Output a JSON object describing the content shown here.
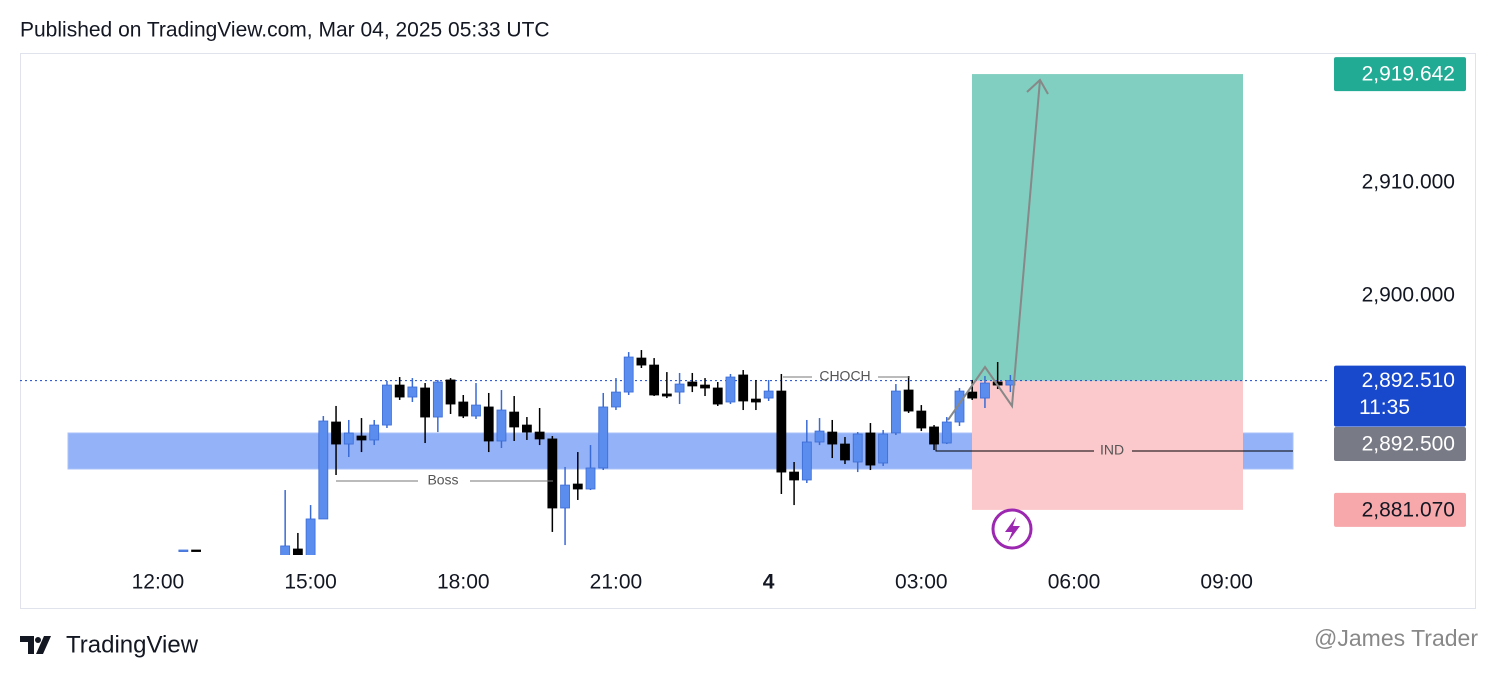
{
  "header": "Published on TradingView.com, Mar 04, 2025 05:33 UTC",
  "chart_data": {
    "type": "candlestick",
    "x": [
      12.5,
      12.75,
      14.5,
      14.75,
      15,
      15.25,
      15.5,
      15.75,
      16,
      16.25,
      16.5,
      16.75,
      17,
      17.25,
      17.5,
      17.75,
      18,
      18.25,
      18.5,
      18.75,
      19,
      19.25,
      19.5,
      19.75,
      20,
      20.25,
      20.5,
      20.75,
      21,
      21.25,
      21.5,
      21.75,
      22,
      22.25,
      22.5,
      22.75,
      23,
      23.25,
      23.5,
      23.75,
      24,
      24.25,
      24.5,
      24.75,
      25,
      25.25,
      25.5,
      25.75,
      26,
      26.25,
      26.5,
      26.75,
      27,
      27.25,
      27.5,
      27.75,
      28,
      28.25,
      28.5,
      28.75
    ],
    "open": [
      2877.43,
      2877.52,
      2876.99,
      2877.61,
      2876.99,
      2880.27,
      2888.85,
      2886.9,
      2887.61,
      2887.26,
      2888.58,
      2892.12,
      2891.06,
      2891.86,
      2889.29,
      2892.57,
      2890.62,
      2889.38,
      2890.18,
      2887.17,
      2889.73,
      2888.58,
      2887.96,
      2887.35,
      2881.24,
      2883.36,
      2882.92,
      2884.78,
      2890.18,
      2891.5,
      2894.51,
      2893.89,
      2891.33,
      2891.5,
      2892.39,
      2892.12,
      2891.86,
      2890.62,
      2893.01,
      2890.88,
      2890.97,
      2891.59,
      2884.42,
      2883.72,
      2887.08,
      2887.96,
      2886.9,
      2885.31,
      2887.88,
      2885.22,
      2887.88,
      2891.68,
      2889.82,
      2888.41,
      2886.99,
      2888.85,
      2891.5,
      2890.97,
      2892.39,
      2892.12
    ],
    "high": [
      2877.52,
      2877.52,
      2882.83,
      2879.03,
      2881.5,
      2889.38,
      2890.27,
      2889.03,
      2889.2,
      2889.03,
      2892.48,
      2892.83,
      2892.74,
      2892.3,
      2892.57,
      2892.74,
      2891.24,
      2892.3,
      2891.42,
      2891.68,
      2891.15,
      2889.29,
      2890.09,
      2887.61,
      2884.87,
      2886.19,
      2886.81,
      2891.42,
      2892.74,
      2895.04,
      2895.22,
      2894.51,
      2893.27,
      2893.19,
      2893.19,
      2892.74,
      2892.39,
      2893.1,
      2893.45,
      2892.57,
      2892.57,
      2893.1,
      2885.31,
      2889.03,
      2889.2,
      2889.03,
      2887.52,
      2887.96,
      2888.76,
      2888.14,
      2892.21,
      2892.92,
      2890.35,
      2888.58,
      2889.29,
      2891.86,
      2892.57,
      2892.92,
      2894.16,
      2893.01
    ],
    "low": [
      2877.43,
      2877.43,
      2876.99,
      2876.99,
      2876.64,
      2880.27,
      2884.16,
      2885.75,
      2886.19,
      2886.81,
      2888.32,
      2890.8,
      2890.62,
      2886.99,
      2887.96,
      2889.56,
      2889.2,
      2889.12,
      2886.19,
      2886.55,
      2887.17,
      2887.26,
      2886.81,
      2879.12,
      2877.96,
      2881.95,
      2882.83,
      2884.6,
      2889.91,
      2891.24,
      2893.63,
      2891.15,
      2890.97,
      2890.44,
      2891.5,
      2891.15,
      2890.27,
      2890.44,
      2889.91,
      2889.91,
      2890.71,
      2882.48,
      2881.5,
      2883.45,
      2886.81,
      2885.66,
      2885.13,
      2884.42,
      2884.6,
      2884.96,
      2887.7,
      2889.65,
      2888.05,
      2886.37,
      2886.9,
      2888.5,
      2890.8,
      2890.09,
      2891.77,
      2891.5
    ],
    "close": [
      2877.52,
      2877.43,
      2877.88,
      2876.99,
      2880.27,
      2888.94,
      2886.9,
      2887.88,
      2887.26,
      2888.58,
      2892.12,
      2891.06,
      2891.95,
      2889.29,
      2892.39,
      2890.44,
      2889.38,
      2890.35,
      2887.17,
      2889.91,
      2888.41,
      2887.96,
      2887.35,
      2881.24,
      2883.27,
      2882.92,
      2884.78,
      2890.18,
      2891.5,
      2894.6,
      2893.89,
      2891.24,
      2891.15,
      2892.21,
      2892.04,
      2891.86,
      2890.44,
      2892.83,
      2890.71,
      2890.62,
      2891.59,
      2884.42,
      2883.72,
      2887.08,
      2888.05,
      2886.9,
      2885.49,
      2887.79,
      2885.04,
      2887.79,
      2891.59,
      2889.82,
      2888.32,
      2886.9,
      2888.85,
      2891.59,
      2890.97,
      2892.3,
      2892.12,
      2892.51
    ],
    "up_color": "#5b8def",
    "down_color": "#000000",
    "xlim": [
      9.29,
      35.03
    ],
    "ylim": [
      2877.08,
      2921.33
    ],
    "xticks": [
      {
        "value": 12,
        "label": "12:00"
      },
      {
        "value": 15,
        "label": "15:00"
      },
      {
        "value": 18,
        "label": "18:00"
      },
      {
        "value": 21,
        "label": "21:00"
      },
      {
        "value": 24,
        "label": "4"
      },
      {
        "value": 27,
        "label": "03:00"
      },
      {
        "value": 30,
        "label": "06:00"
      },
      {
        "value": 33,
        "label": "09:00"
      }
    ],
    "yticks": [
      {
        "value": 2900,
        "label": "2,900.000"
      },
      {
        "value": 2910,
        "label": "2,910.000"
      }
    ],
    "grid": false,
    "last_price": {
      "value": 2892.51,
      "label": "2,892.510"
    },
    "countdown": "11:35",
    "position": {
      "target": {
        "value": 2919.642,
        "label": "2,919.642"
      },
      "entry": {
        "value": 2892.5,
        "label": "2,892.500"
      },
      "stop": {
        "value": 2881.07,
        "label": "2,881.070"
      }
    },
    "annotations": [
      "CHOCH",
      "Boss",
      "IND"
    ]
  },
  "footer": {
    "brand": "TradingView",
    "watermark": "@James Trader"
  }
}
